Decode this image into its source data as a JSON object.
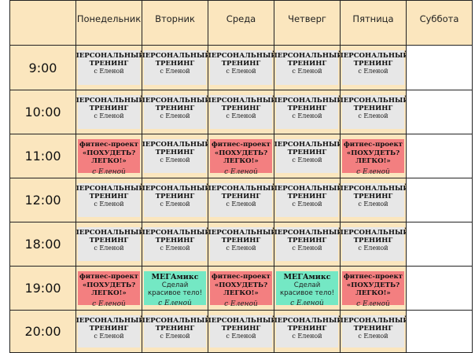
{
  "days": [
    "Понедельник",
    "Вторник",
    "Среда",
    "Четверг",
    "Пятница",
    "Суббота"
  ],
  "times": [
    "9:00",
    "10:00",
    "11:00",
    "12:00",
    "18:00",
    "19:00",
    "20:00"
  ],
  "personal": {
    "line1": "ПЕРСОНАЛЬНЫЙ",
    "line2": "ТРЕНИНГ",
    "line3": "с Еленой"
  },
  "fitness": {
    "line1": "фитнес-проект",
    "line2": "«ПОХУДЕТЬ?",
    "line3": "ЛЕГКО!»",
    "signature": "с Еленой"
  },
  "mega": {
    "title": "МЕГАмикс",
    "sub1": "Сделай",
    "sub2": "красивое тело!",
    "signature": "с Еленой"
  },
  "schedule": [
    [
      "personal",
      "personal",
      "personal",
      "personal",
      "personal",
      "empty"
    ],
    [
      "personal",
      "personal",
      "personal",
      "personal",
      "personal",
      "empty"
    ],
    [
      "fitness",
      "personal",
      "fitness",
      "personal",
      "fitness",
      "empty"
    ],
    [
      "personal",
      "personal",
      "personal",
      "personal",
      "personal",
      "empty"
    ],
    [
      "personal",
      "personal",
      "personal",
      "personal",
      "personal",
      "empty"
    ],
    [
      "fitness",
      "mega",
      "fitness",
      "mega",
      "fitness",
      "empty"
    ],
    [
      "personal",
      "personal",
      "personal",
      "personal",
      "personal",
      "empty"
    ]
  ],
  "colors": {
    "header_bg": "#fbe6be",
    "personal_bg": "#e7e7e7",
    "fitness_bg": "#f37f80",
    "mega_bg": "#74e8c4"
  }
}
